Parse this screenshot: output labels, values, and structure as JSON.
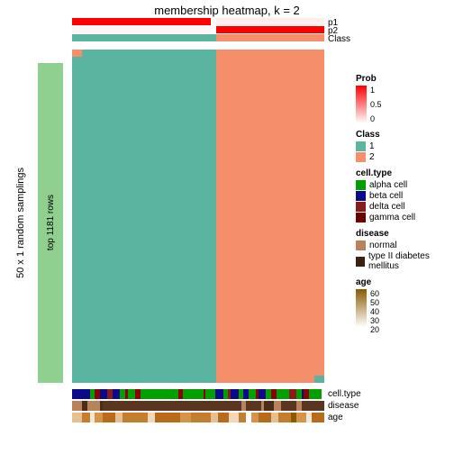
{
  "title": "membership heatmap, k = 2",
  "left_outer_label": "50 x 1 random samplings",
  "left_inner_label": "top 1181 rows",
  "top_annotations": {
    "p1": {
      "label": "p1",
      "segments": [
        {
          "w": 0.55,
          "color": "#ff0000"
        },
        {
          "w": 0.02,
          "color": "#ffffff"
        },
        {
          "w": 0.43,
          "color": "#ffeeee"
        }
      ]
    },
    "p2": {
      "label": "p2",
      "segments": [
        {
          "w": 0.55,
          "color": "#fff5f5"
        },
        {
          "w": 0.02,
          "color": "#ffffff"
        },
        {
          "w": 0.43,
          "color": "#ff0000"
        }
      ]
    },
    "class": {
      "label": "Class",
      "segments": [
        {
          "w": 0.57,
          "color": "#5ab4a0"
        },
        {
          "w": 0.43,
          "color": "#f58e6b"
        }
      ]
    }
  },
  "main_heatmap": {
    "split": 0.57,
    "left_color": "#5ab4a0",
    "right_color": "#f58e6b",
    "accent_segments": [
      {
        "w": 0.04,
        "color": "#f58e6b"
      },
      {
        "w": 0.53,
        "color": "#5ab4a0"
      },
      {
        "w": 0.43,
        "color": "#f58e6b"
      }
    ],
    "bottom_accent_segments": [
      {
        "w": 0.57,
        "color": "#5ab4a0"
      },
      {
        "w": 0.39,
        "color": "#f58e6b"
      },
      {
        "w": 0.04,
        "color": "#5ab4a0"
      }
    ]
  },
  "bottom_annotations": {
    "cell_type": {
      "label": "cell.type",
      "pattern": [
        {
          "w": 0.03,
          "c": "#0a0a8a"
        },
        {
          "w": 0.04,
          "c": "#0a0a8a"
        },
        {
          "w": 0.02,
          "c": "#00a000"
        },
        {
          "w": 0.02,
          "c": "#8b0000"
        },
        {
          "w": 0.03,
          "c": "#0a0a8a"
        },
        {
          "w": 0.02,
          "c": "#8b1a1a"
        },
        {
          "w": 0.03,
          "c": "#0a0a8a"
        },
        {
          "w": 0.02,
          "c": "#00a000"
        },
        {
          "w": 0.01,
          "c": "#8b0000"
        },
        {
          "w": 0.03,
          "c": "#00a000"
        },
        {
          "w": 0.02,
          "c": "#8b0000"
        },
        {
          "w": 0.15,
          "c": "#00a000"
        },
        {
          "w": 0.02,
          "c": "#8b0000"
        },
        {
          "w": 0.08,
          "c": "#00a000"
        },
        {
          "w": 0.01,
          "c": "#8b0000"
        },
        {
          "w": 0.04,
          "c": "#00a000"
        },
        {
          "w": 0.03,
          "c": "#0a0a8a"
        },
        {
          "w": 0.02,
          "c": "#00a000"
        },
        {
          "w": 0.01,
          "c": "#8b1a1a"
        },
        {
          "w": 0.03,
          "c": "#0a0a8a"
        },
        {
          "w": 0.02,
          "c": "#00a000"
        },
        {
          "w": 0.02,
          "c": "#0a0a8a"
        },
        {
          "w": 0.03,
          "c": "#00a000"
        },
        {
          "w": 0.01,
          "c": "#8b0000"
        },
        {
          "w": 0.03,
          "c": "#0a0a8a"
        },
        {
          "w": 0.02,
          "c": "#00a000"
        },
        {
          "w": 0.02,
          "c": "#8b0000"
        },
        {
          "w": 0.05,
          "c": "#00a000"
        },
        {
          "w": 0.03,
          "c": "#8b1a1a"
        },
        {
          "w": 0.02,
          "c": "#00a000"
        },
        {
          "w": 0.01,
          "c": "#0a0a8a"
        },
        {
          "w": 0.02,
          "c": "#8b0000"
        },
        {
          "w": 0.05,
          "c": "#00a000"
        }
      ]
    },
    "disease": {
      "label": "disease",
      "pattern": [
        {
          "w": 0.04,
          "c": "#b8835a"
        },
        {
          "w": 0.02,
          "c": "#4a2c1a"
        },
        {
          "w": 0.05,
          "c": "#b8835a"
        },
        {
          "w": 0.01,
          "c": "#4a2c1a"
        },
        {
          "w": 0.55,
          "c": "#5a3520"
        },
        {
          "w": 0.02,
          "c": "#b8835a"
        },
        {
          "w": 0.06,
          "c": "#5a3520"
        },
        {
          "w": 0.01,
          "c": "#b8835a"
        },
        {
          "w": 0.04,
          "c": "#4a2c1a"
        },
        {
          "w": 0.03,
          "c": "#b8835a"
        },
        {
          "w": 0.06,
          "c": "#5a3520"
        },
        {
          "w": 0.02,
          "c": "#b8835a"
        },
        {
          "w": 0.09,
          "c": "#5a3520"
        }
      ]
    },
    "age": {
      "label": "age",
      "pattern": [
        {
          "w": 0.04,
          "c": "#e6c090"
        },
        {
          "w": 0.03,
          "c": "#c47f2e"
        },
        {
          "w": 0.02,
          "c": "#f5e6d0"
        },
        {
          "w": 0.03,
          "c": "#d4954a"
        },
        {
          "w": 0.05,
          "c": "#b86b1a"
        },
        {
          "w": 0.03,
          "c": "#e6c090"
        },
        {
          "w": 0.1,
          "c": "#c47f2e"
        },
        {
          "w": 0.03,
          "c": "#f0d8b8"
        },
        {
          "w": 0.1,
          "c": "#b86b1a"
        },
        {
          "w": 0.04,
          "c": "#d4954a"
        },
        {
          "w": 0.08,
          "c": "#c47f2e"
        },
        {
          "w": 0.03,
          "c": "#e6c090"
        },
        {
          "w": 0.04,
          "c": "#b86b1a"
        },
        {
          "w": 0.04,
          "c": "#f0d8b8"
        },
        {
          "w": 0.03,
          "c": "#c47f2e"
        },
        {
          "w": 0.02,
          "c": "#ffffff"
        },
        {
          "w": 0.03,
          "c": "#d4954a"
        },
        {
          "w": 0.05,
          "c": "#b86b1a"
        },
        {
          "w": 0.03,
          "c": "#e6c090"
        },
        {
          "w": 0.05,
          "c": "#c47f2e"
        },
        {
          "w": 0.02,
          "c": "#8b5a00"
        },
        {
          "w": 0.04,
          "c": "#d4954a"
        },
        {
          "w": 0.02,
          "c": "#f5e6d0"
        },
        {
          "w": 0.05,
          "c": "#b86b1a"
        }
      ]
    }
  },
  "legends": {
    "prob": {
      "title": "Prob",
      "gradient_top": "#ff0000",
      "gradient_bottom": "#ffffff",
      "ticks": [
        "1",
        "0.5",
        "0"
      ]
    },
    "class": {
      "title": "Class",
      "items": [
        {
          "label": "1",
          "color": "#5ab4a0"
        },
        {
          "label": "2",
          "color": "#f58e6b"
        }
      ]
    },
    "cell_type": {
      "title": "cell.type",
      "items": [
        {
          "label": "alpha cell",
          "color": "#00a000"
        },
        {
          "label": "beta cell",
          "color": "#0a0a8a"
        },
        {
          "label": "delta cell",
          "color": "#8b1a1a"
        },
        {
          "label": "gamma cell",
          "color": "#6b0000"
        }
      ]
    },
    "disease": {
      "title": "disease",
      "items": [
        {
          "label": "normal",
          "color": "#b8835a"
        },
        {
          "label": "type II diabetes mellitus",
          "color": "#3a2212"
        }
      ]
    },
    "age": {
      "title": "age",
      "gradient_top": "#8b5a00",
      "gradient_bottom": "#ffffff",
      "ticks": [
        "60",
        "50",
        "40",
        "30",
        "20"
      ]
    }
  }
}
